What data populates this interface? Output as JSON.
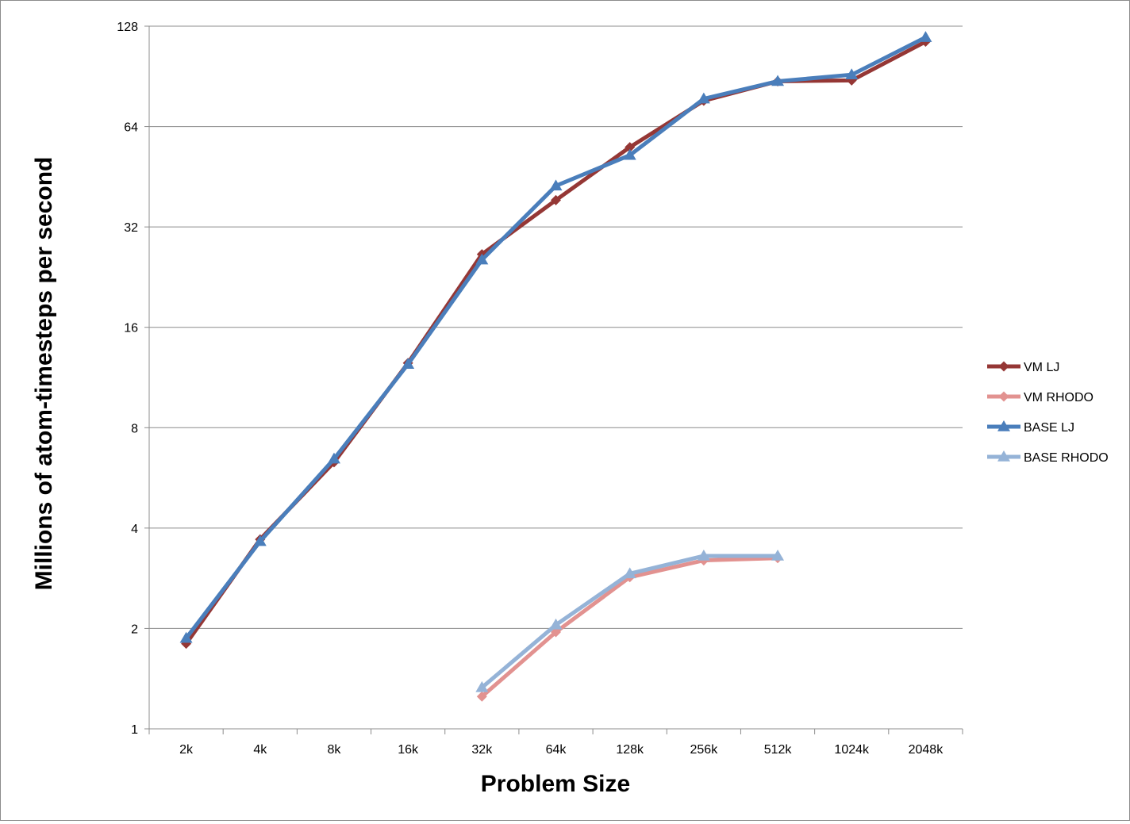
{
  "chart_data": {
    "type": "line",
    "title": "",
    "xlabel": "Problem Size",
    "ylabel": "Millions of atom-timesteps per second",
    "y_scale": "log2",
    "ylim": [
      1,
      128
    ],
    "y_ticks": [
      1,
      2,
      4,
      8,
      16,
      32,
      64,
      128
    ],
    "y_tick_labels": [
      "1",
      "2",
      "4",
      "8",
      "16",
      "32",
      "64",
      "128"
    ],
    "categories": [
      "2k",
      "4k",
      "8k",
      "16k",
      "32k",
      "64k",
      "128k",
      "256k",
      "512k",
      "1024k",
      "2048k"
    ],
    "grid": "horizontal",
    "legend_position": "right",
    "series": [
      {
        "name": "VM LJ",
        "color": "#953735",
        "marker": "diamond",
        "values": [
          1.8,
          3.7,
          6.3,
          12.5,
          26.5,
          38.5,
          55.5,
          76.5,
          87.5,
          88.0,
          115.0
        ]
      },
      {
        "name": "VM RHODO",
        "color": "#e29290",
        "marker": "diamond",
        "values": [
          null,
          null,
          null,
          null,
          1.25,
          1.95,
          2.85,
          3.2,
          3.25,
          null,
          null
        ]
      },
      {
        "name": "BASE LJ",
        "color": "#4a7ebb",
        "marker": "triangle",
        "values": [
          1.87,
          3.65,
          6.45,
          12.4,
          25.5,
          42.5,
          52.5,
          77.5,
          87.5,
          91.5,
          118.5
        ]
      },
      {
        "name": "BASE RHODO",
        "color": "#95b3d7",
        "marker": "triangle",
        "values": [
          null,
          null,
          null,
          null,
          1.33,
          2.05,
          2.92,
          3.3,
          3.3,
          null,
          null
        ]
      }
    ]
  }
}
